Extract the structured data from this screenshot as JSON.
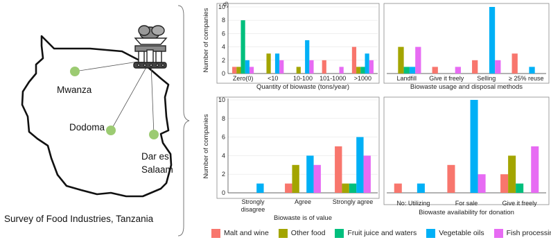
{
  "map": {
    "city1": "Mwanza",
    "city2": "Dodoma",
    "city3a": "Dar es",
    "city3b": "Salaam",
    "caption": "Survey of Food  Industries, Tanzania"
  },
  "colors": {
    "malt": "#F8766D",
    "other": "#A3A500",
    "fruit": "#00BF7D",
    "veg": "#00B0F6",
    "fish": "#E76BF3",
    "marker": "#9CCB72",
    "map_line": "#111111"
  },
  "legend": [
    "Malt and wine",
    "Other food",
    "Fruit juice and waters",
    "Vegetable oils",
    "Fish processing"
  ],
  "chart_data": [
    {
      "type": "bar",
      "panel_tag": "d)",
      "xlabel": "Quantity of biowaste (tons/year)",
      "ylabel": "Number of companies",
      "ylim": [
        0,
        10
      ],
      "yticks": [
        0,
        2,
        4,
        6,
        8,
        10
      ],
      "categories": [
        "Zero(0)",
        "<10",
        "10-100",
        "101-1000",
        ">1000"
      ],
      "series": [
        {
          "name": "Malt and wine",
          "values": [
            1,
            0,
            0,
            2,
            4
          ]
        },
        {
          "name": "Other food",
          "values": [
            1,
            3,
            1,
            0,
            1
          ]
        },
        {
          "name": "Fruit juice and waters",
          "values": [
            8,
            0,
            0,
            0,
            1
          ]
        },
        {
          "name": "Vegetable oils",
          "values": [
            2,
            3,
            5,
            0,
            3
          ]
        },
        {
          "name": "Fish processing",
          "values": [
            1,
            2,
            2,
            1,
            2
          ]
        }
      ]
    },
    {
      "type": "bar",
      "xlabel": "Biowaste usage and disposal methods",
      "ylabel": "",
      "ylim": [
        0,
        10
      ],
      "categories": [
        "Landfill",
        "Give it freely",
        "Selling",
        "≥ 25% reuse"
      ],
      "series": [
        {
          "name": "Malt and wine",
          "values": [
            0,
            1,
            2,
            3
          ]
        },
        {
          "name": "Other food",
          "values": [
            4,
            0,
            0,
            0
          ]
        },
        {
          "name": "Fruit juice and waters",
          "values": [
            1,
            0,
            0,
            0
          ]
        },
        {
          "name": "Vegetable oils",
          "values": [
            1,
            0,
            10,
            1
          ]
        },
        {
          "name": "Fish processing",
          "values": [
            4,
            1,
            2,
            0
          ]
        }
      ]
    },
    {
      "type": "bar",
      "xlabel": "Biowaste is of value",
      "ylabel": "Number of companies",
      "ylim": [
        0,
        10
      ],
      "yticks": [
        0,
        2,
        4,
        6,
        8,
        10
      ],
      "categories": [
        "Strongly\ndisagree",
        "Agree",
        "Strongly agree"
      ],
      "series": [
        {
          "name": "Malt and wine",
          "values": [
            0,
            1,
            5
          ]
        },
        {
          "name": "Other food",
          "values": [
            0,
            3,
            1
          ]
        },
        {
          "name": "Fruit juice and waters",
          "values": [
            0,
            0,
            1
          ]
        },
        {
          "name": "Vegetable oils",
          "values": [
            1,
            4,
            6
          ]
        },
        {
          "name": "Fish processing",
          "values": [
            0,
            3,
            4
          ]
        }
      ]
    },
    {
      "type": "bar",
      "xlabel": "Biowaste availability for donation",
      "ylabel": "",
      "ylim": [
        0,
        10
      ],
      "categories": [
        "No: Utilizing",
        "For sale",
        "Give it freely"
      ],
      "series": [
        {
          "name": "Malt and wine",
          "values": [
            1,
            3,
            2
          ]
        },
        {
          "name": "Other food",
          "values": [
            0,
            0,
            4
          ]
        },
        {
          "name": "Fruit juice and waters",
          "values": [
            0,
            0,
            1
          ]
        },
        {
          "name": "Vegetable oils",
          "values": [
            1,
            10,
            0
          ]
        },
        {
          "name": "Fish processing",
          "values": [
            0,
            2,
            5
          ]
        }
      ]
    }
  ]
}
